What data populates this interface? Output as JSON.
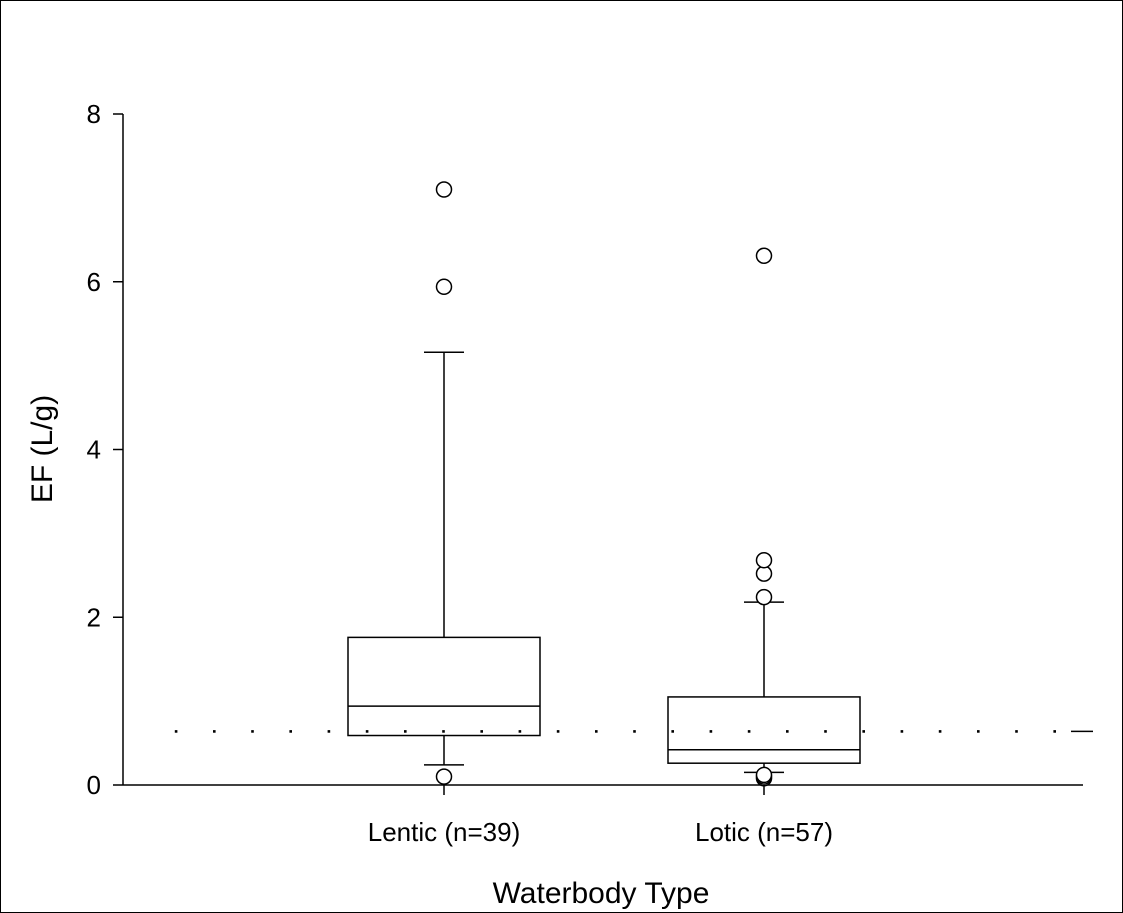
{
  "chart_data": {
    "type": "box",
    "xlabel": "Waterbody Type",
    "ylabel": "EF (L/g)",
    "ylim": [
      0,
      8
    ],
    "yticks": [
      0,
      2,
      4,
      6,
      8
    ],
    "reference_line": {
      "value": 0.64,
      "style": "dotted"
    },
    "categories": [
      "Lentic (n=39)",
      "Lotic (n=57)"
    ],
    "boxes": [
      {
        "category": "Lentic (n=39)",
        "whisker_low": 0.24,
        "q1": 0.59,
        "median": 0.94,
        "q3": 1.76,
        "whisker_high": 5.16,
        "outliers": [
          0.1,
          5.94,
          7.1
        ]
      },
      {
        "category": "Lotic (n=57)",
        "whisker_low": 0.15,
        "q1": 0.26,
        "median": 0.42,
        "q3": 1.05,
        "whisker_high": 2.18,
        "outliers": [
          0.08,
          0.1,
          0.12,
          2.24,
          2.52,
          2.68,
          6.31
        ]
      }
    ],
    "grid": false,
    "legend": "none"
  }
}
